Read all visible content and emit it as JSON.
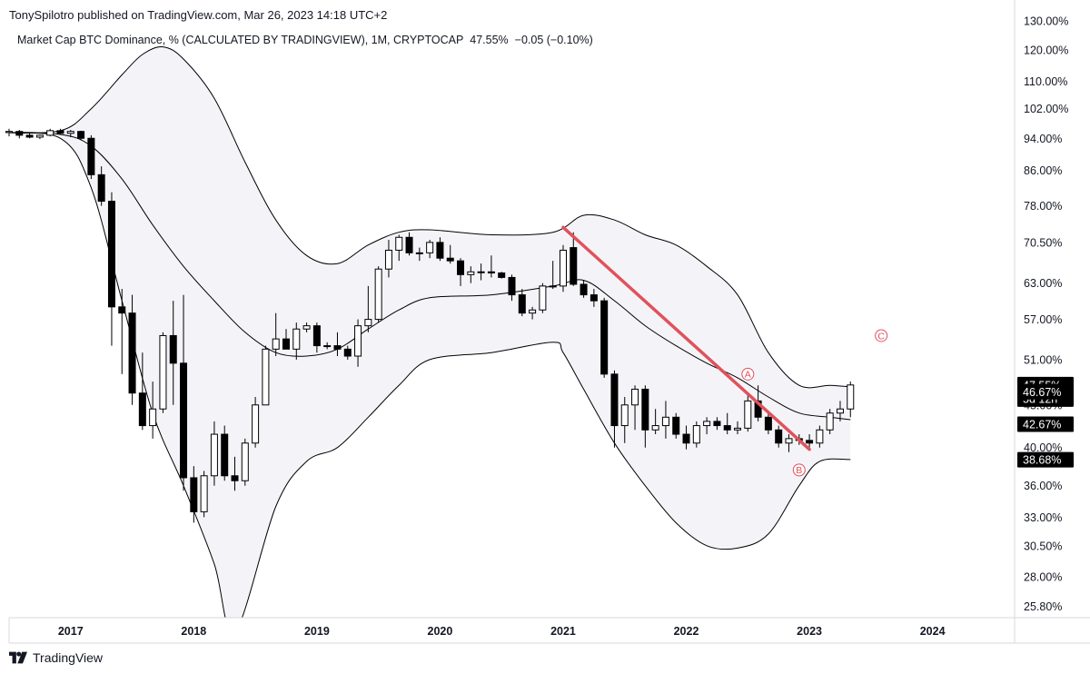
{
  "header": {
    "publisher": "TonySpilotro published on TradingView.com, Mar 26, 2023 14:18 UTC+2",
    "symbol": "Market Cap BTC Dominance, % (CALCULATED BY TRADINGVIEW), 1M, CRYPTOCAP",
    "last_value": "47.55%",
    "change": "−0.05 (−0.10%)"
  },
  "footer": {
    "brand": "TradingView"
  },
  "colors": {
    "bull_fill": "#ffffff",
    "bear_fill": "#000000",
    "band_fill": "#f4f4f8",
    "trendline": "#e0525c",
    "annotation": "#e0525c"
  },
  "chart_data": {
    "type": "candlestick",
    "scale": "log",
    "ylim": [
      25,
      131
    ],
    "xlim": [
      "2016-07",
      "2024-09"
    ],
    "x_ticks": [
      "2017",
      "2018",
      "2019",
      "2020",
      "2021",
      "2022",
      "2023",
      "2024"
    ],
    "y_ticks": [
      "130.00%",
      "120.00%",
      "110.00%",
      "102.00%",
      "94.00%",
      "86.00%",
      "78.00%",
      "70.50%",
      "63.00%",
      "57.00%",
      "51.00%",
      "45.00%",
      "40.00%",
      "36.00%",
      "33.00%",
      "30.50%",
      "28.00%",
      "25.80%"
    ],
    "price_labels": [
      {
        "text": "47.55%",
        "sub": "5d 12h",
        "value": 47.55,
        "style": "outline"
      },
      {
        "text": "46.67%",
        "value": 46.67,
        "style": "filled"
      },
      {
        "text": "42.67%",
        "value": 42.67,
        "style": "filled"
      },
      {
        "text": "38.68%",
        "value": 38.68,
        "style": "filled"
      }
    ],
    "candles": [
      {
        "t": "2016-07",
        "o": 95.5,
        "h": 96.5,
        "l": 94.5,
        "c": 95.8
      },
      {
        "t": "2016-08",
        "o": 95.8,
        "h": 96.2,
        "l": 94.0,
        "c": 94.8
      },
      {
        "t": "2016-09",
        "o": 94.8,
        "h": 95.5,
        "l": 94.0,
        "c": 94.3
      },
      {
        "t": "2016-10",
        "o": 94.3,
        "h": 95.0,
        "l": 93.8,
        "c": 94.8
      },
      {
        "t": "2016-11",
        "o": 94.8,
        "h": 96.5,
        "l": 94.5,
        "c": 96.0
      },
      {
        "t": "2016-12",
        "o": 96.0,
        "h": 96.5,
        "l": 95.0,
        "c": 95.3
      },
      {
        "t": "2017-01",
        "o": 95.3,
        "h": 96.2,
        "l": 94.3,
        "c": 95.8
      },
      {
        "t": "2017-02",
        "o": 95.8,
        "h": 96.0,
        "l": 93.5,
        "c": 94.0
      },
      {
        "t": "2017-03",
        "o": 94.0,
        "h": 94.8,
        "l": 84.0,
        "c": 85.0
      },
      {
        "t": "2017-04",
        "o": 85.0,
        "h": 87.0,
        "l": 78.0,
        "c": 79.0
      },
      {
        "t": "2017-05",
        "o": 79.0,
        "h": 81.0,
        "l": 53.0,
        "c": 59.0
      },
      {
        "t": "2017-06",
        "o": 59.0,
        "h": 62.0,
        "l": 49.0,
        "c": 58.0
      },
      {
        "t": "2017-07",
        "o": 58.0,
        "h": 61.0,
        "l": 45.0,
        "c": 46.5
      },
      {
        "t": "2017-08",
        "o": 46.5,
        "h": 52.0,
        "l": 42.0,
        "c": 42.5
      },
      {
        "t": "2017-09",
        "o": 42.5,
        "h": 48.0,
        "l": 41.0,
        "c": 44.5
      },
      {
        "t": "2017-10",
        "o": 44.5,
        "h": 55.0,
        "l": 44.0,
        "c": 54.5
      },
      {
        "t": "2017-11",
        "o": 54.5,
        "h": 60.0,
        "l": 45.0,
        "c": 50.5
      },
      {
        "t": "2017-12",
        "o": 50.5,
        "h": 61.0,
        "l": 35.5,
        "c": 36.8
      },
      {
        "t": "2018-01",
        "o": 36.8,
        "h": 38.0,
        "l": 32.5,
        "c": 33.5
      },
      {
        "t": "2018-02",
        "o": 33.5,
        "h": 37.5,
        "l": 33.0,
        "c": 37.0
      },
      {
        "t": "2018-03",
        "o": 37.0,
        "h": 43.0,
        "l": 36.0,
        "c": 41.5
      },
      {
        "t": "2018-04",
        "o": 41.5,
        "h": 42.5,
        "l": 36.5,
        "c": 37.0
      },
      {
        "t": "2018-05",
        "o": 37.0,
        "h": 39.0,
        "l": 35.5,
        "c": 36.5
      },
      {
        "t": "2018-06",
        "o": 36.5,
        "h": 41.0,
        "l": 36.0,
        "c": 40.5
      },
      {
        "t": "2018-07",
        "o": 40.5,
        "h": 46.0,
        "l": 40.0,
        "c": 45.0
      },
      {
        "t": "2018-08",
        "o": 45.0,
        "h": 53.0,
        "l": 45.0,
        "c": 52.5
      },
      {
        "t": "2018-09",
        "o": 52.5,
        "h": 58.0,
        "l": 51.5,
        "c": 54.0
      },
      {
        "t": "2018-10",
        "o": 54.0,
        "h": 55.5,
        "l": 52.5,
        "c": 52.5
      },
      {
        "t": "2018-11",
        "o": 52.5,
        "h": 56.5,
        "l": 51.0,
        "c": 55.5
      },
      {
        "t": "2018-12",
        "o": 55.5,
        "h": 56.5,
        "l": 55.0,
        "c": 56.0
      },
      {
        "t": "2019-01",
        "o": 56.0,
        "h": 56.5,
        "l": 52.0,
        "c": 53.0
      },
      {
        "t": "2019-02",
        "o": 53.0,
        "h": 53.5,
        "l": 52.5,
        "c": 53.0
      },
      {
        "t": "2019-03",
        "o": 53.0,
        "h": 55.0,
        "l": 51.5,
        "c": 52.5
      },
      {
        "t": "2019-04",
        "o": 52.5,
        "h": 53.0,
        "l": 51.0,
        "c": 51.5
      },
      {
        "t": "2019-05",
        "o": 51.5,
        "h": 57.0,
        "l": 50.0,
        "c": 56.0
      },
      {
        "t": "2019-06",
        "o": 56.0,
        "h": 62.5,
        "l": 55.0,
        "c": 57.0
      },
      {
        "t": "2019-07",
        "o": 57.0,
        "h": 66.0,
        "l": 56.5,
        "c": 65.5
      },
      {
        "t": "2019-08",
        "o": 65.5,
        "h": 71.0,
        "l": 64.0,
        "c": 69.0
      },
      {
        "t": "2019-09",
        "o": 69.0,
        "h": 72.0,
        "l": 67.0,
        "c": 71.5
      },
      {
        "t": "2019-10",
        "o": 71.5,
        "h": 72.5,
        "l": 68.0,
        "c": 68.5
      },
      {
        "t": "2019-11",
        "o": 68.5,
        "h": 69.5,
        "l": 67.0,
        "c": 68.5
      },
      {
        "t": "2019-12",
        "o": 68.5,
        "h": 71.0,
        "l": 67.5,
        "c": 70.5
      },
      {
        "t": "2020-01",
        "o": 70.5,
        "h": 71.5,
        "l": 67.0,
        "c": 67.5
      },
      {
        "t": "2020-02",
        "o": 67.5,
        "h": 70.0,
        "l": 66.5,
        "c": 67.0
      },
      {
        "t": "2020-03",
        "o": 67.0,
        "h": 67.5,
        "l": 62.5,
        "c": 64.5
      },
      {
        "t": "2020-04",
        "o": 64.5,
        "h": 66.0,
        "l": 63.0,
        "c": 65.0
      },
      {
        "t": "2020-05",
        "o": 65.0,
        "h": 66.5,
        "l": 63.5,
        "c": 65.0
      },
      {
        "t": "2020-06",
        "o": 65.0,
        "h": 68.0,
        "l": 64.0,
        "c": 64.8
      },
      {
        "t": "2020-07",
        "o": 64.8,
        "h": 65.0,
        "l": 63.8,
        "c": 64.0
      },
      {
        "t": "2020-08",
        "o": 64.0,
        "h": 64.5,
        "l": 60.0,
        "c": 61.0
      },
      {
        "t": "2020-09",
        "o": 61.0,
        "h": 62.0,
        "l": 57.5,
        "c": 58.0
      },
      {
        "t": "2020-10",
        "o": 58.0,
        "h": 59.0,
        "l": 57.0,
        "c": 58.5
      },
      {
        "t": "2020-11",
        "o": 58.5,
        "h": 63.0,
        "l": 58.0,
        "c": 62.5
      },
      {
        "t": "2020-12",
        "o": 62.5,
        "h": 67.0,
        "l": 62.0,
        "c": 62.5
      },
      {
        "t": "2021-01",
        "o": 62.5,
        "h": 70.0,
        "l": 61.5,
        "c": 69.0
      },
      {
        "t": "2021-02",
        "o": 69.5,
        "h": 72.5,
        "l": 62.5,
        "c": 62.8
      },
      {
        "t": "2021-03",
        "o": 62.8,
        "h": 63.5,
        "l": 60.5,
        "c": 61.0
      },
      {
        "t": "2021-04",
        "o": 61.0,
        "h": 62.0,
        "l": 59.0,
        "c": 60.0
      },
      {
        "t": "2021-05",
        "o": 60.0,
        "h": 60.5,
        "l": 48.5,
        "c": 49.0
      },
      {
        "t": "2021-06",
        "o": 49.0,
        "h": 49.5,
        "l": 40.0,
        "c": 42.5
      },
      {
        "t": "2021-07",
        "o": 42.5,
        "h": 46.0,
        "l": 40.5,
        "c": 45.0
      },
      {
        "t": "2021-08",
        "o": 45.0,
        "h": 47.5,
        "l": 42.0,
        "c": 47.0
      },
      {
        "t": "2021-09",
        "o": 47.0,
        "h": 47.5,
        "l": 40.0,
        "c": 42.0
      },
      {
        "t": "2021-10",
        "o": 42.0,
        "h": 44.5,
        "l": 41.5,
        "c": 42.5
      },
      {
        "t": "2021-11",
        "o": 42.5,
        "h": 45.5,
        "l": 41.0,
        "c": 43.5
      },
      {
        "t": "2021-12",
        "o": 43.5,
        "h": 44.0,
        "l": 41.0,
        "c": 41.5
      },
      {
        "t": "2022-01",
        "o": 41.5,
        "h": 42.5,
        "l": 39.8,
        "c": 40.5
      },
      {
        "t": "2022-02",
        "o": 40.5,
        "h": 43.0,
        "l": 40.0,
        "c": 42.5
      },
      {
        "t": "2022-03",
        "o": 42.5,
        "h": 43.5,
        "l": 41.5,
        "c": 43.0
      },
      {
        "t": "2022-04",
        "o": 43.0,
        "h": 43.5,
        "l": 42.0,
        "c": 42.5
      },
      {
        "t": "2022-05",
        "o": 42.5,
        "h": 44.0,
        "l": 41.5,
        "c": 42.0
      },
      {
        "t": "2022-06",
        "o": 42.0,
        "h": 43.0,
        "l": 41.5,
        "c": 42.2
      },
      {
        "t": "2022-07",
        "o": 42.2,
        "h": 46.5,
        "l": 41.8,
        "c": 45.5
      },
      {
        "t": "2022-08",
        "o": 45.5,
        "h": 47.5,
        "l": 43.0,
        "c": 43.5
      },
      {
        "t": "2022-09",
        "o": 43.5,
        "h": 44.0,
        "l": 41.5,
        "c": 42.0
      },
      {
        "t": "2022-10",
        "o": 42.0,
        "h": 42.5,
        "l": 40.0,
        "c": 40.5
      },
      {
        "t": "2022-11",
        "o": 40.5,
        "h": 41.5,
        "l": 39.5,
        "c": 41.0
      },
      {
        "t": "2022-12",
        "o": 41.0,
        "h": 41.5,
        "l": 40.3,
        "c": 40.8
      },
      {
        "t": "2023-01",
        "o": 40.8,
        "h": 41.5,
        "l": 40.0,
        "c": 40.5
      },
      {
        "t": "2023-02",
        "o": 40.5,
        "h": 42.5,
        "l": 40.0,
        "c": 42.0
      },
      {
        "t": "2023-03",
        "o": 42.0,
        "h": 44.5,
        "l": 41.5,
        "c": 44.0
      },
      {
        "t": "2023-04",
        "o": 44.0,
        "h": 45.5,
        "l": 43.0,
        "c": 44.5
      },
      {
        "t": "2023-05",
        "o": 44.5,
        "h": 48.0,
        "l": 43.5,
        "c": 47.55
      }
    ],
    "bands": {
      "upper": [
        [
          "2016-06",
          95.5
        ],
        [
          "2016-12",
          96.0
        ],
        [
          "2017-03",
          102.0
        ],
        [
          "2017-06",
          112.0
        ],
        [
          "2017-08",
          118.5
        ],
        [
          "2017-10",
          121.0
        ],
        [
          "2017-12",
          117.0
        ],
        [
          "2018-03",
          105.0
        ],
        [
          "2018-06",
          88.0
        ],
        [
          "2018-09",
          75.0
        ],
        [
          "2018-12",
          68.0
        ],
        [
          "2019-03",
          66.5
        ],
        [
          "2019-06",
          70.0
        ],
        [
          "2019-09",
          72.5
        ],
        [
          "2019-12",
          73.0
        ],
        [
          "2020-06",
          72.0
        ],
        [
          "2020-12",
          72.5
        ],
        [
          "2021-03",
          76.0
        ],
        [
          "2021-06",
          75.0
        ],
        [
          "2021-09",
          72.0
        ],
        [
          "2021-12",
          70.0
        ],
        [
          "2022-03",
          66.0
        ],
        [
          "2022-06",
          61.0
        ],
        [
          "2022-09",
          52.0
        ],
        [
          "2022-12",
          47.5
        ],
        [
          "2023-03",
          47.5
        ],
        [
          "2023-05",
          47.3
        ]
      ],
      "basis": [
        [
          "2016-06",
          95.5
        ],
        [
          "2016-12",
          95.0
        ],
        [
          "2017-03",
          92.0
        ],
        [
          "2017-06",
          84.0
        ],
        [
          "2017-09",
          74.0
        ],
        [
          "2017-12",
          66.0
        ],
        [
          "2018-03",
          60.0
        ],
        [
          "2018-06",
          55.0
        ],
        [
          "2018-09",
          52.0
        ],
        [
          "2018-12",
          51.5
        ],
        [
          "2019-03",
          52.5
        ],
        [
          "2019-06",
          55.5
        ],
        [
          "2019-09",
          58.5
        ],
        [
          "2019-12",
          60.5
        ],
        [
          "2020-06",
          61.0
        ],
        [
          "2020-12",
          62.5
        ],
        [
          "2021-03",
          63.5
        ],
        [
          "2021-06",
          60.0
        ],
        [
          "2021-09",
          56.0
        ],
        [
          "2021-12",
          53.0
        ],
        [
          "2022-03",
          50.5
        ],
        [
          "2022-06",
          48.5
        ],
        [
          "2022-09",
          46.0
        ],
        [
          "2022-12",
          44.0
        ],
        [
          "2023-03",
          43.5
        ],
        [
          "2023-05",
          43.2
        ]
      ],
      "lower": [
        [
          "2016-06",
          95.5
        ],
        [
          "2016-12",
          94.0
        ],
        [
          "2017-03",
          82.0
        ],
        [
          "2017-06",
          60.0
        ],
        [
          "2017-09",
          44.0
        ],
        [
          "2017-12",
          36.0
        ],
        [
          "2018-03",
          29.0
        ],
        [
          "2018-05",
          24.0
        ],
        [
          "2018-09",
          34.0
        ],
        [
          "2018-12",
          38.5
        ],
        [
          "2019-03",
          40.0
        ],
        [
          "2019-06",
          43.5
        ],
        [
          "2019-09",
          47.5
        ],
        [
          "2019-12",
          51.0
        ],
        [
          "2020-06",
          52.0
        ],
        [
          "2020-12",
          53.5
        ],
        [
          "2021-01",
          52.0
        ],
        [
          "2021-03",
          47.0
        ],
        [
          "2021-06",
          40.5
        ],
        [
          "2021-09",
          36.0
        ],
        [
          "2021-12",
          32.5
        ],
        [
          "2022-03",
          30.5
        ],
        [
          "2022-06",
          30.3
        ],
        [
          "2022-09",
          31.5
        ],
        [
          "2022-12",
          36.0
        ],
        [
          "2023-02",
          38.5
        ],
        [
          "2023-05",
          38.7
        ]
      ]
    },
    "trendline": {
      "from": [
        "2021-01",
        73.5
      ],
      "to": [
        "2023-01",
        39.8
      ]
    },
    "annotations": [
      {
        "label": "A",
        "t": "2022-07",
        "value": 49.0
      },
      {
        "label": "B",
        "t": "2022-12",
        "value": 37.6
      },
      {
        "label": "C",
        "t": "2023-08",
        "value": 54.5
      }
    ]
  }
}
